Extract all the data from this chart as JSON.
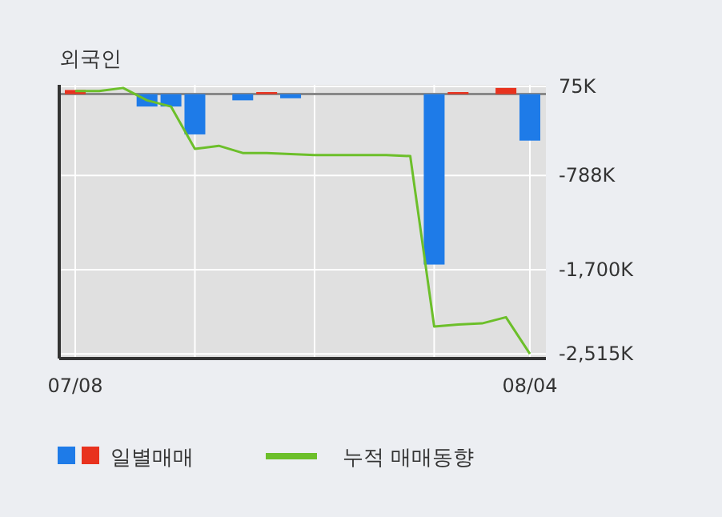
{
  "chart_data": {
    "type": "bar",
    "title": "외국인",
    "categories": [
      "07/08",
      null,
      null,
      null,
      null,
      null,
      null,
      null,
      null,
      null,
      null,
      null,
      null,
      null,
      null,
      null,
      null,
      null,
      null,
      "08/04"
    ],
    "series": [
      {
        "name": "일별매매",
        "values": [
          40,
          0,
          0,
          -120,
          -120,
          -390,
          0,
          -60,
          20,
          -40,
          0,
          0,
          0,
          0,
          0,
          -1650,
          20,
          0,
          60,
          -450
        ],
        "colors": [
          "#e8321e",
          "#e8321e",
          "#e8321e",
          "#1e7be8",
          "#1e7be8",
          "#1e7be8",
          "#e8321e",
          "#1e7be8",
          "#e8321e",
          "#1e7be8",
          "#e8321e",
          "#e8321e",
          "#e8321e",
          "#e8321e",
          "#e8321e",
          "#1e7be8",
          "#e8321e",
          "#e8321e",
          "#e8321e",
          "#1e7be8"
        ]
      },
      {
        "name": "누적 매매동향",
        "type": "line",
        "color": "#6cbf2a",
        "values": [
          30,
          30,
          60,
          -60,
          -120,
          -530,
          -500,
          -570,
          -570,
          -580,
          -590,
          -590,
          -590,
          -590,
          -600,
          -2250,
          -2230,
          -2220,
          -2160,
          -2515
        ]
      }
    ],
    "ylim": [
      -2560,
      90
    ],
    "yticks": [
      {
        "value": 75,
        "label": "75K"
      },
      {
        "value": -788,
        "label": "-788K"
      },
      {
        "value": -1700,
        "label": "-1,700K"
      },
      {
        "value": -2515,
        "label": "-2,515K"
      }
    ],
    "grid": true,
    "legend": "bottom"
  }
}
